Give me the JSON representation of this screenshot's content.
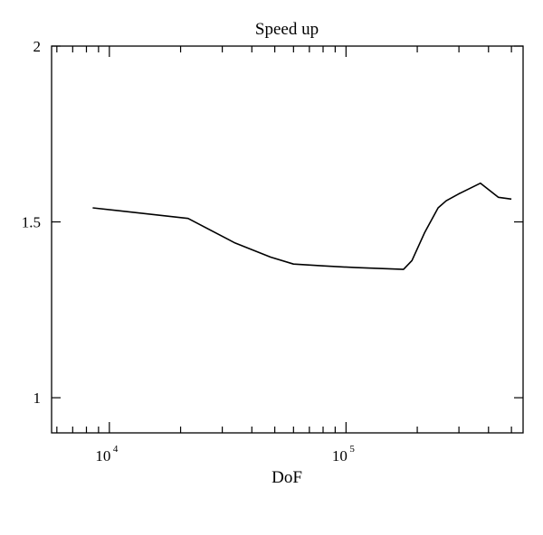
{
  "chart_data": {
    "type": "line",
    "title": "Speed up",
    "xlabel": "DoF",
    "ylabel": "",
    "xscale": "log",
    "xlim": [
      5700,
      560000
    ],
    "ylim": [
      0.9,
      2.0
    ],
    "grid": false,
    "legend": "none",
    "colors": {
      "line": "#000000",
      "frame": "#000000",
      "background": "#ffffff"
    },
    "x_ticks": [
      {
        "base": "10",
        "exponent": "4",
        "value": 10000
      },
      {
        "base": "10",
        "exponent": "5",
        "value": 100000
      }
    ],
    "y_ticks": [
      {
        "label": "1",
        "value": 1.0
      },
      {
        "label": "1.5",
        "value": 1.5
      },
      {
        "label": "2",
        "value": 2.0
      }
    ],
    "series": [
      {
        "x": [
          8500,
          21500,
          34000,
          48000,
          60000,
          80000,
          110000,
          175000,
          190000,
          215000,
          245000,
          265000,
          300000,
          370000,
          440000,
          500000
        ],
        "y": [
          1.54,
          1.51,
          1.44,
          1.4,
          1.38,
          1.375,
          1.37,
          1.365,
          1.39,
          1.47,
          1.54,
          1.56,
          1.58,
          1.61,
          1.57,
          1.565
        ]
      }
    ]
  }
}
